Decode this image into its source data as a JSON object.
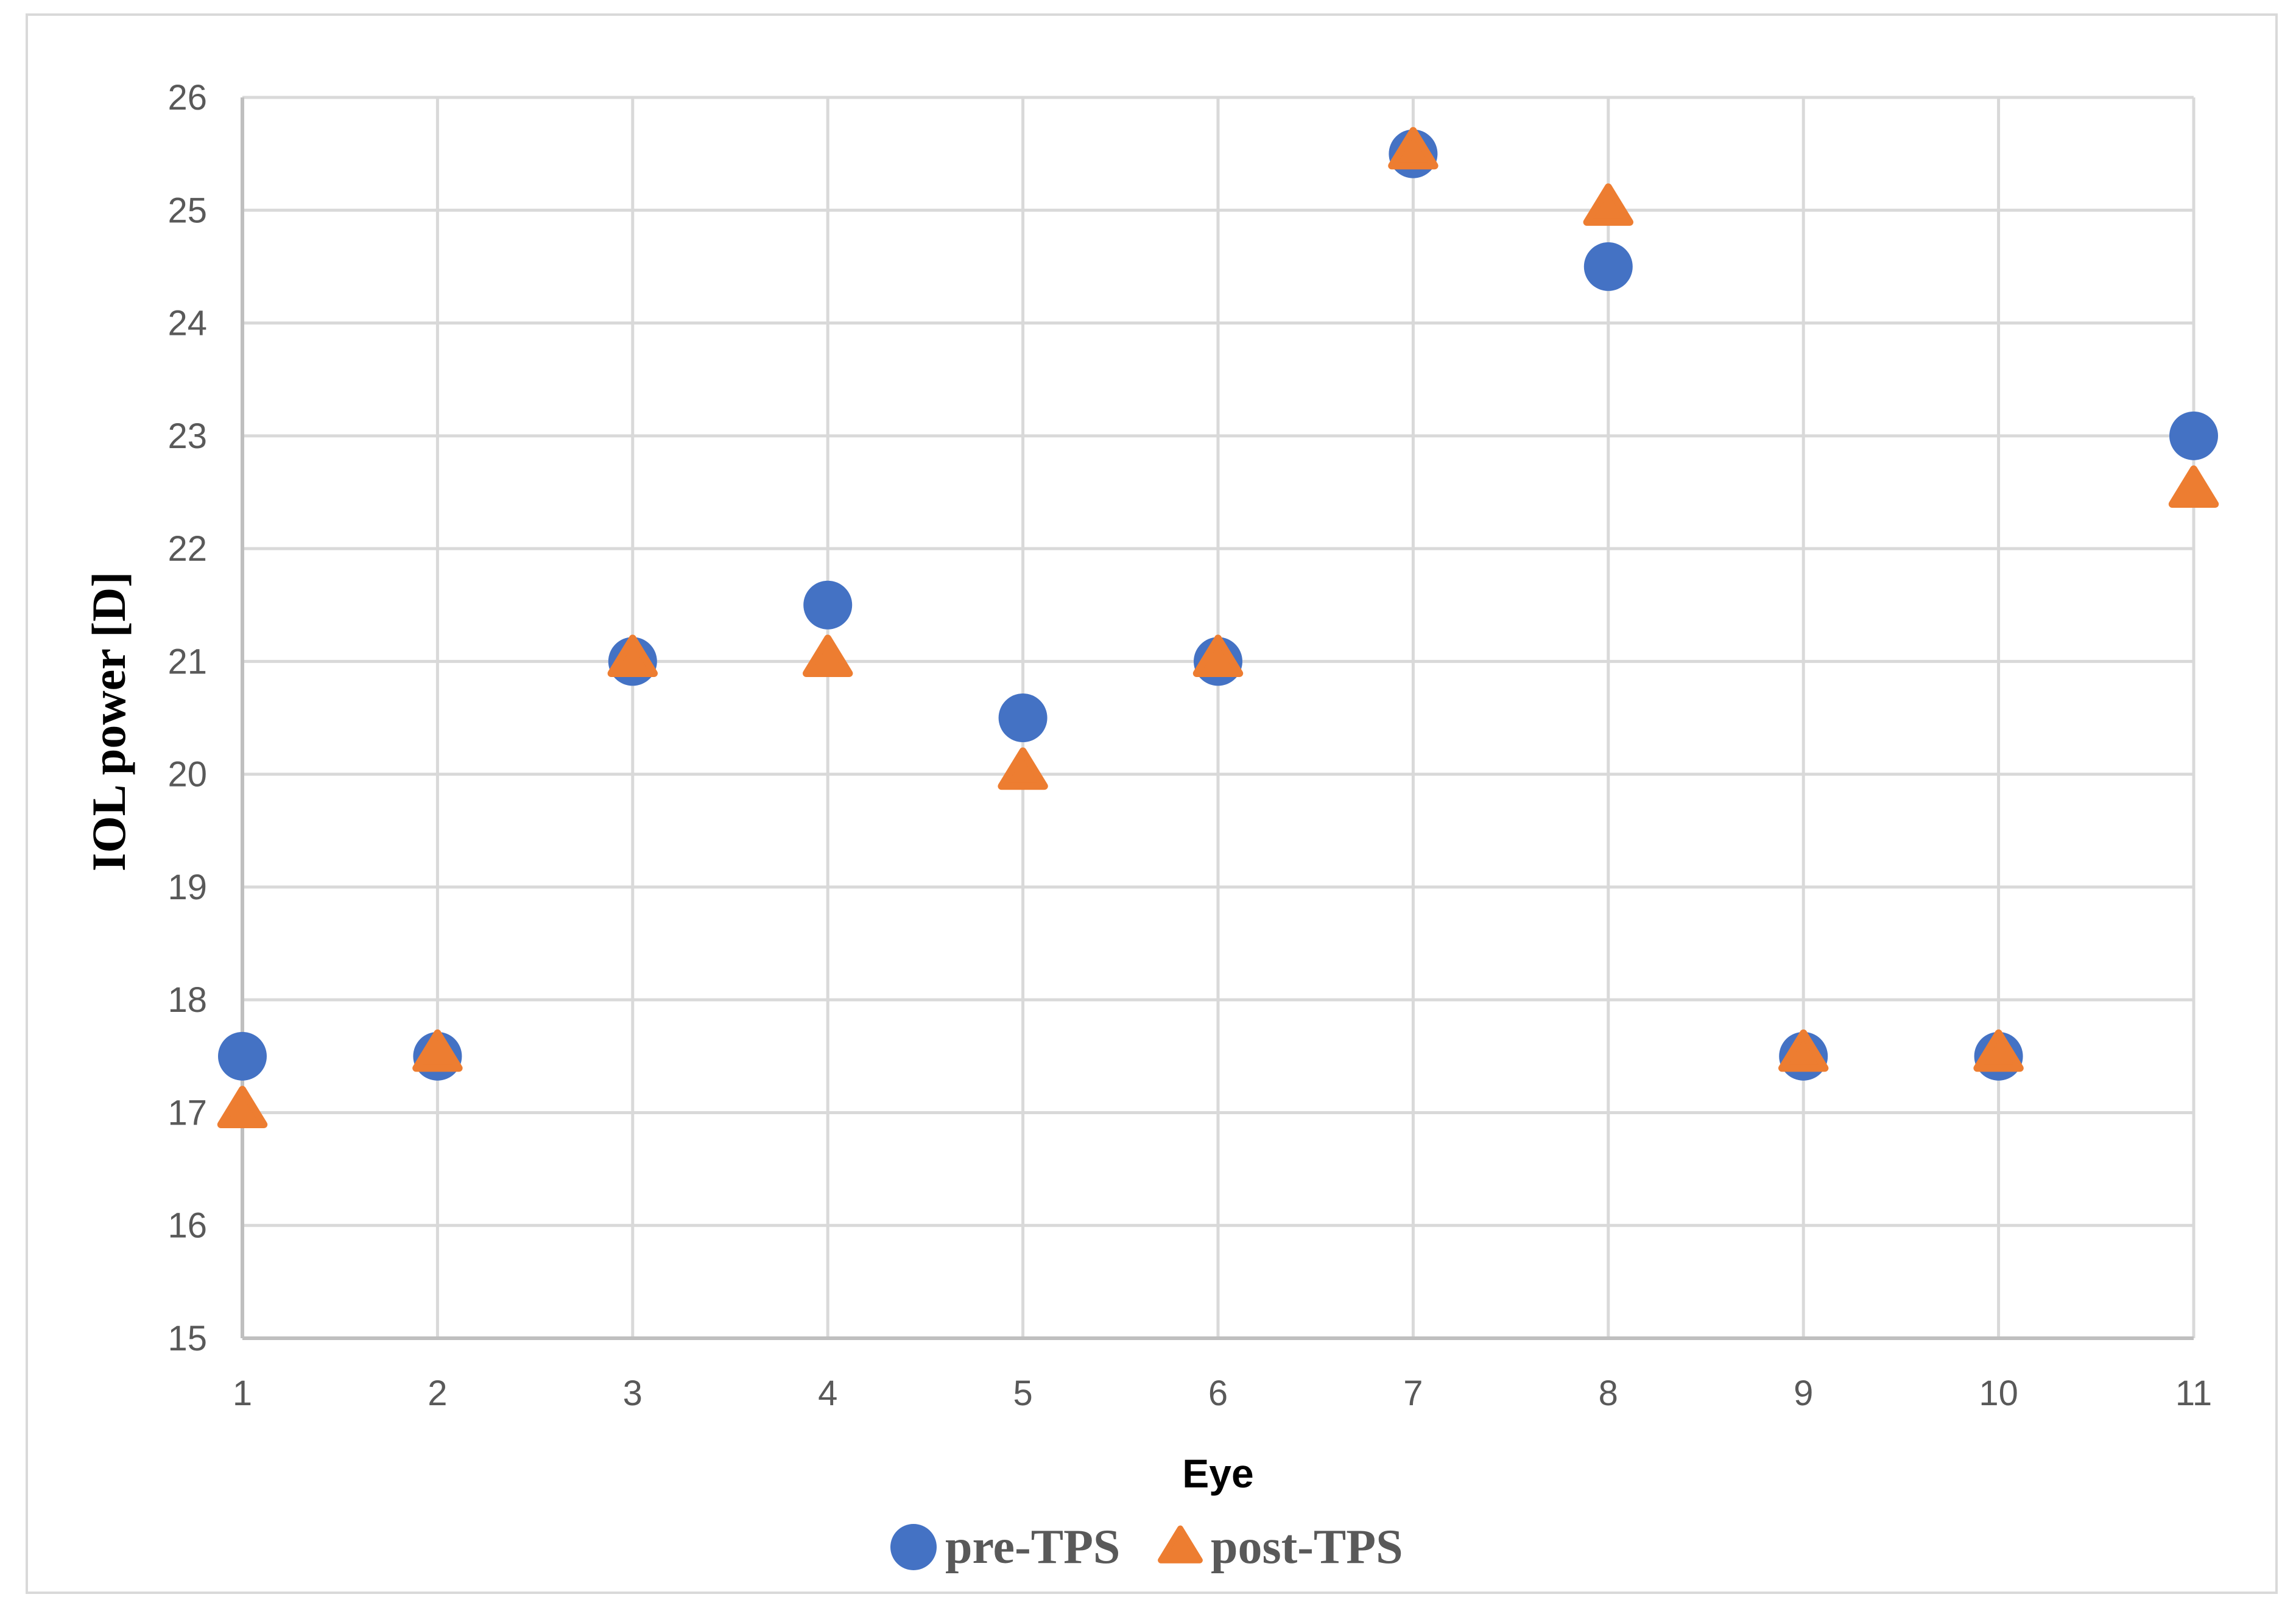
{
  "chart_data": {
    "type": "scatter",
    "title": "",
    "xlabel": "Eye",
    "ylabel": "IOL power [D]",
    "xlim": [
      1,
      11
    ],
    "ylim": [
      15,
      26
    ],
    "x_ticks": [
      1,
      2,
      3,
      4,
      5,
      6,
      7,
      8,
      9,
      10,
      11
    ],
    "y_ticks": [
      15,
      16,
      17,
      18,
      19,
      20,
      21,
      22,
      23,
      24,
      25,
      26
    ],
    "grid": true,
    "legend_position": "bottom",
    "series": [
      {
        "name": "pre-TPS",
        "marker": "circle",
        "color": "#4472C4",
        "x": [
          1,
          2,
          3,
          4,
          5,
          6,
          7,
          8,
          9,
          10,
          11
        ],
        "y": [
          17.5,
          17.5,
          21,
          21.5,
          20.5,
          21,
          25.5,
          24.5,
          17.5,
          17.5,
          23
        ]
      },
      {
        "name": "post-TPS",
        "marker": "triangle",
        "color": "#ED7D31",
        "x": [
          1,
          2,
          3,
          4,
          5,
          6,
          7,
          8,
          9,
          10,
          11
        ],
        "y": [
          17,
          17.5,
          21,
          21,
          20,
          21,
          25.5,
          25,
          17.5,
          17.5,
          22.5
        ]
      }
    ]
  }
}
